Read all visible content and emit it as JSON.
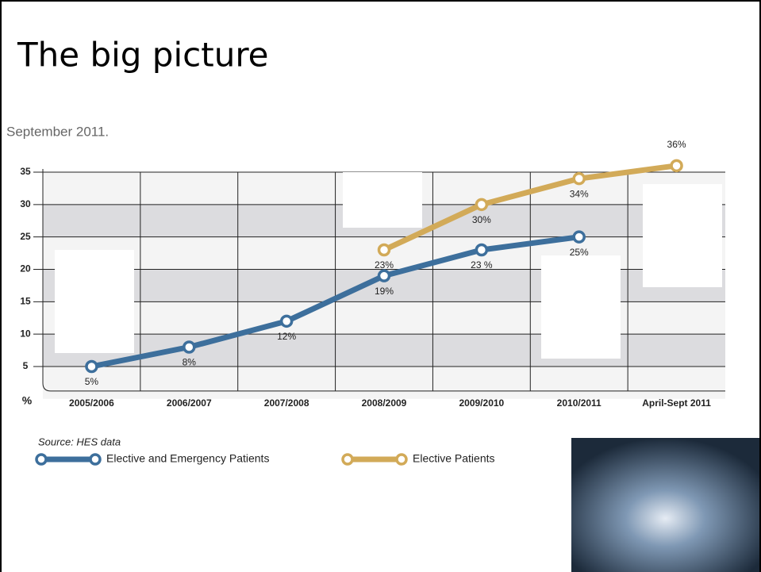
{
  "title": "The big picture",
  "subtitle": "September 2011.",
  "chart_data": {
    "type": "line",
    "categories": [
      "2005/2006",
      "2006/2007",
      "2007/2008",
      "2008/2009",
      "2009/2010",
      "2010/2011",
      "April-Sept 2011"
    ],
    "series": [
      {
        "name": "Elective and Emergency Patients",
        "color": "#3d6f9c",
        "values": [
          5,
          8,
          12,
          19,
          23,
          25,
          null
        ],
        "value_labels": [
          "5%",
          "8%",
          "12%",
          "19%",
          "23 %",
          "25%",
          null
        ]
      },
      {
        "name": "Elective Patients",
        "color": "#d2aa58",
        "values": [
          null,
          null,
          null,
          23,
          30,
          34,
          36
        ],
        "value_labels": [
          null,
          null,
          null,
          "23%",
          "30%",
          "34%",
          "36%"
        ]
      }
    ],
    "ylabel": "%",
    "ylim": [
      0,
      35
    ],
    "yticks": [
      5,
      10,
      15,
      20,
      25,
      30,
      35
    ],
    "grid": true,
    "source": "Source: HES data"
  }
}
